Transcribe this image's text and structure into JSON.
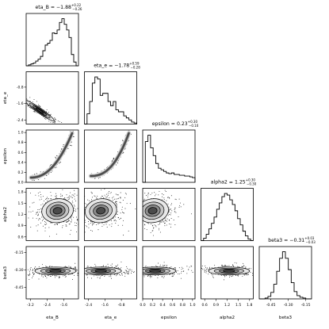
{
  "chart_data": {
    "type": "scatter",
    "title": "",
    "grid": false,
    "parameters": [
      {
        "key": "eta_B",
        "axis_label": "eta_B",
        "title_prefix": "eta_B = ",
        "title_value": "−1.88",
        "sup": "+0.22",
        "sub": "−0.26",
        "range": [
          -3.4,
          -0.9
        ],
        "ticks": [
          -3.2,
          -2.4,
          -1.6
        ],
        "tick_labels": [
          "-3.2",
          "-2.4",
          "-1.6"
        ]
      },
      {
        "key": "eta_e",
        "axis_label": "eta_e",
        "title_prefix": "eta_e = ",
        "title_value": "−1.78",
        "sup": "+0.59",
        "sub": "−0.28",
        "range": [
          -2.6,
          -0.05
        ],
        "ticks": [
          -2.4,
          -1.6,
          -0.8
        ],
        "tick_labels": [
          "-2.4",
          "-1.6",
          "-0.8"
        ]
      },
      {
        "key": "epsilon",
        "axis_label": "epsilon",
        "title_prefix": "epsilon = ",
        "title_value": "0.23",
        "sup": "+0.30",
        "sub": "−0.10",
        "range": [
          0.0,
          1.05
        ],
        "ticks": [
          0.0,
          0.2,
          0.4,
          0.6,
          0.8,
          1.0
        ],
        "tick_labels": [
          "0.0",
          "0.2",
          "0.4",
          "0.6",
          "0.8",
          "1.0"
        ]
      },
      {
        "key": "alpha2",
        "axis_label": "alpha2",
        "title_prefix": "alpha2 = ",
        "title_value": "1.25",
        "sup": "+0.30",
        "sub": "−0.30",
        "range": [
          0.5,
          1.9
        ],
        "ticks": [
          0.6,
          0.9,
          1.2,
          1.5,
          1.8
        ],
        "tick_labels": [
          "0.6",
          "0.9",
          "1.2",
          "1.5",
          "1.8"
        ]
      },
      {
        "key": "beta3",
        "axis_label": "beta3",
        "title_prefix": "beta3 = ",
        "title_value": "−0.31",
        "sup": "+0.03",
        "sub": "−0.03",
        "range": [
          -0.55,
          -0.1
        ],
        "ticks": [
          -0.45,
          -0.3,
          -0.15
        ],
        "tick_labels": [
          "-0.45",
          "-0.30",
          "-0.15"
        ]
      }
    ],
    "histograms": {
      "eta_B": [
        0,
        1,
        2,
        3,
        5,
        7,
        10,
        16,
        22,
        24,
        27,
        35,
        34,
        38,
        46,
        50,
        44,
        38,
        30,
        12,
        4,
        0
      ],
      "eta_e": [
        0,
        10,
        22,
        40,
        46,
        44,
        28,
        30,
        30,
        22,
        18,
        22,
        14,
        12,
        12,
        8,
        6,
        4,
        2,
        1
      ],
      "epsilon": [
        0,
        52,
        60,
        44,
        34,
        24,
        18,
        16,
        14,
        12,
        11,
        12,
        10,
        10,
        9,
        9,
        8,
        8,
        7,
        6
      ],
      "alpha2": [
        0,
        3,
        8,
        15,
        22,
        30,
        40,
        48,
        56,
        60,
        58,
        52,
        46,
        38,
        28,
        20,
        12,
        6,
        2,
        0
      ],
      "beta3": [
        0,
        0,
        1,
        3,
        8,
        18,
        34,
        50,
        58,
        50,
        36,
        20,
        9,
        4,
        2,
        1,
        0,
        0
      ]
    },
    "joint_2d": [
      {
        "x": "eta_B",
        "y": "eta_e",
        "shape": "diagonal-ridge",
        "center": [
          -2.75,
          -1.95
        ]
      },
      {
        "x": "eta_B",
        "y": "epsilon",
        "shape": "curved-band",
        "center": [
          -2.7,
          0.2
        ]
      },
      {
        "x": "eta_e",
        "y": "epsilon",
        "shape": "curved-band",
        "center": [
          -2.0,
          0.2
        ]
      },
      {
        "x": "epsilon",
        "y": "eta_e",
        "shape": "blob",
        "center": [
          0.3,
          -1.7
        ]
      },
      {
        "x": "eta_B",
        "y": "alpha2",
        "shape": "blob",
        "center": [
          -1.9,
          1.3
        ]
      },
      {
        "x": "eta_e",
        "y": "alpha2",
        "shape": "blob",
        "center": [
          -1.8,
          1.3
        ]
      },
      {
        "x": "epsilon",
        "y": "alpha2",
        "shape": "blob",
        "center": [
          0.2,
          1.3
        ]
      },
      {
        "x": "eta_B",
        "y": "beta3",
        "shape": "flat-blob",
        "center": [
          -2.0,
          -0.31
        ]
      },
      {
        "x": "eta_e",
        "y": "beta3",
        "shape": "flat-blob",
        "center": [
          -1.8,
          -0.31
        ]
      },
      {
        "x": "epsilon",
        "y": "beta3",
        "shape": "flat-blob",
        "center": [
          0.25,
          -0.31
        ]
      },
      {
        "x": "alpha2",
        "y": "beta3",
        "shape": "flat-blob",
        "center": [
          1.25,
          -0.31
        ]
      }
    ]
  }
}
